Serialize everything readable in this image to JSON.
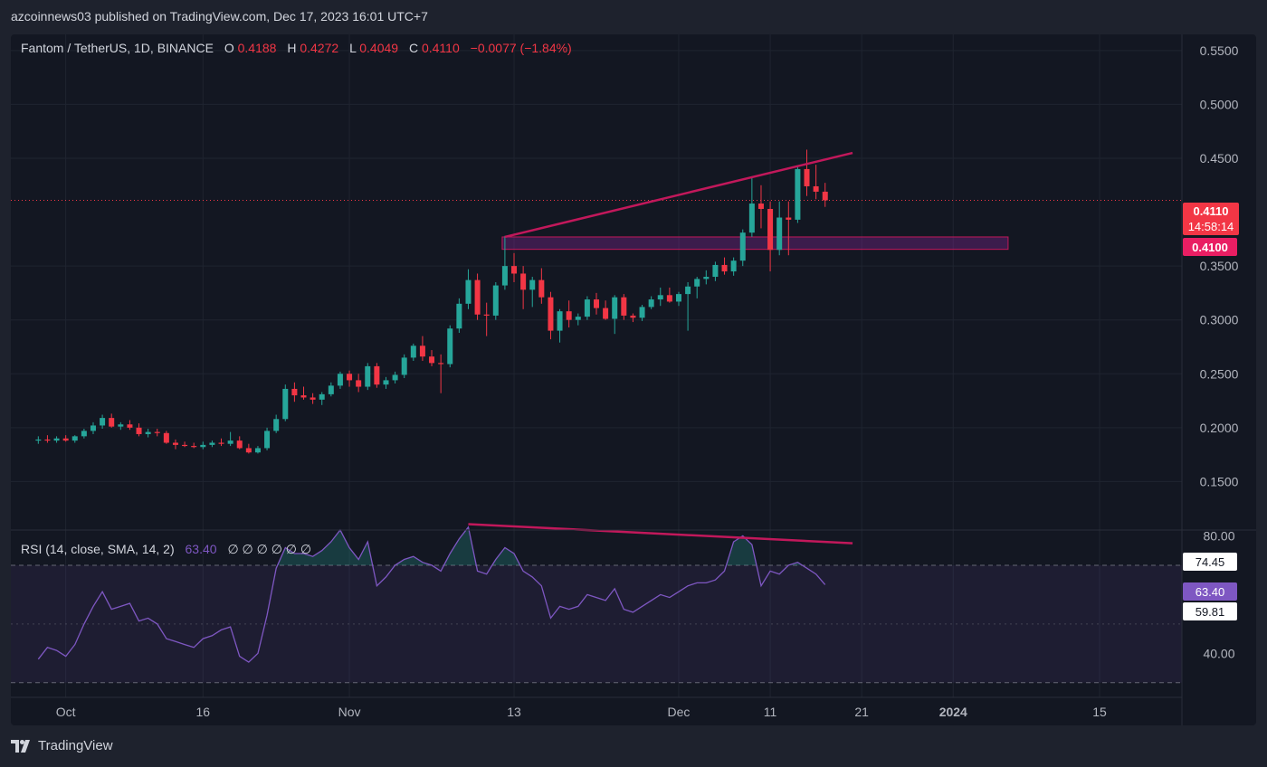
{
  "header": {
    "publisher_line": "azcoinnews03 published on TradingView.com, Dec 17, 2023 16:01 UTC+7"
  },
  "footer": {
    "brand": "TradingView"
  },
  "colors": {
    "background": "#131722",
    "up": "#26a69a",
    "down": "#f23645",
    "trendline": "#c2185b",
    "zone_fill": "rgba(156,39,176,0.30)",
    "zone_border": "#c2185b",
    "rsi_line": "#7e57c2",
    "rsi_band": "rgba(126,87,194,0.10)"
  },
  "legend": {
    "symbol": "Fantom / TetherUS, 1D, BINANCE",
    "o_label": "O",
    "o_value": "0.4188",
    "h_label": "H",
    "h_value": "0.4272",
    "l_label": "L",
    "l_value": "0.4049",
    "c_label": "C",
    "c_value": "0.4110",
    "change": "−0.0077 (−1.84%)"
  },
  "rsi_legend": {
    "label": "RSI (14, close, SMA, 14, 2)",
    "value": "63.40",
    "extras": "∅ ∅ ∅ ∅ ∅ ∅"
  },
  "price_badges": {
    "last_price": "0.4110",
    "countdown": "14:58:14",
    "line_price": "0.4100",
    "rsi_upper": "74.45",
    "rsi_value": "63.40",
    "rsi_lower": "59.81"
  },
  "chart_data": {
    "type": "candlestick",
    "title": "Fantom / TetherUS, 1D, BINANCE",
    "price_axis": {
      "ticks": [
        "0.5500",
        "0.5000",
        "0.4500",
        "0.3500",
        "0.3000",
        "0.2500",
        "0.2000",
        "0.1500"
      ],
      "range": [
        0.105,
        0.565
      ]
    },
    "x_axis": {
      "ticks": [
        "Oct",
        "16",
        "Nov",
        "13",
        "Dec",
        "11",
        "21",
        "2024",
        "15"
      ],
      "tick_days": [
        4,
        19,
        35,
        53,
        71,
        81,
        91,
        101,
        117
      ],
      "day_range": [
        -2,
        126
      ]
    },
    "candles": [
      [
        1,
        0.188,
        0.192,
        0.185,
        0.189
      ],
      [
        2,
        0.189,
        0.193,
        0.186,
        0.188
      ],
      [
        3,
        0.188,
        0.192,
        0.186,
        0.19
      ],
      [
        4,
        0.19,
        0.193,
        0.187,
        0.188
      ],
      [
        5,
        0.188,
        0.193,
        0.186,
        0.192
      ],
      [
        6,
        0.192,
        0.199,
        0.19,
        0.197
      ],
      [
        7,
        0.197,
        0.205,
        0.194,
        0.202
      ],
      [
        8,
        0.202,
        0.212,
        0.199,
        0.209
      ],
      [
        9,
        0.209,
        0.213,
        0.2,
        0.201
      ],
      [
        10,
        0.201,
        0.205,
        0.198,
        0.203
      ],
      [
        11,
        0.203,
        0.207,
        0.198,
        0.2
      ],
      [
        12,
        0.2,
        0.204,
        0.192,
        0.194
      ],
      [
        13,
        0.194,
        0.199,
        0.191,
        0.196
      ],
      [
        14,
        0.196,
        0.199,
        0.192,
        0.195
      ],
      [
        15,
        0.195,
        0.197,
        0.185,
        0.186
      ],
      [
        16,
        0.186,
        0.189,
        0.18,
        0.184
      ],
      [
        17,
        0.184,
        0.187,
        0.182,
        0.183
      ],
      [
        18,
        0.183,
        0.186,
        0.181,
        0.182
      ],
      [
        19,
        0.182,
        0.187,
        0.18,
        0.184
      ],
      [
        20,
        0.184,
        0.188,
        0.182,
        0.186
      ],
      [
        21,
        0.186,
        0.19,
        0.183,
        0.185
      ],
      [
        22,
        0.185,
        0.196,
        0.183,
        0.188
      ],
      [
        23,
        0.188,
        0.192,
        0.18,
        0.181
      ],
      [
        24,
        0.181,
        0.185,
        0.176,
        0.177
      ],
      [
        25,
        0.177,
        0.183,
        0.176,
        0.181
      ],
      [
        26,
        0.181,
        0.2,
        0.179,
        0.197
      ],
      [
        27,
        0.197,
        0.212,
        0.195,
        0.208
      ],
      [
        28,
        0.208,
        0.24,
        0.206,
        0.236
      ],
      [
        29,
        0.236,
        0.242,
        0.224,
        0.23
      ],
      [
        30,
        0.23,
        0.238,
        0.226,
        0.228
      ],
      [
        31,
        0.228,
        0.232,
        0.222,
        0.226
      ],
      [
        32,
        0.226,
        0.233,
        0.221,
        0.231
      ],
      [
        33,
        0.231,
        0.242,
        0.229,
        0.239
      ],
      [
        34,
        0.239,
        0.252,
        0.236,
        0.25
      ],
      [
        35,
        0.25,
        0.253,
        0.238,
        0.244
      ],
      [
        36,
        0.244,
        0.25,
        0.233,
        0.238
      ],
      [
        37,
        0.238,
        0.26,
        0.235,
        0.257
      ],
      [
        38,
        0.257,
        0.26,
        0.237,
        0.24
      ],
      [
        39,
        0.24,
        0.247,
        0.236,
        0.244
      ],
      [
        40,
        0.244,
        0.252,
        0.241,
        0.249
      ],
      [
        41,
        0.249,
        0.268,
        0.246,
        0.265
      ],
      [
        42,
        0.265,
        0.278,
        0.262,
        0.276
      ],
      [
        43,
        0.276,
        0.285,
        0.262,
        0.266
      ],
      [
        44,
        0.266,
        0.272,
        0.257,
        0.26
      ],
      [
        45,
        0.26,
        0.268,
        0.232,
        0.259
      ],
      [
        46,
        0.259,
        0.295,
        0.256,
        0.292
      ],
      [
        47,
        0.292,
        0.32,
        0.288,
        0.315
      ],
      [
        48,
        0.315,
        0.347,
        0.31,
        0.337
      ],
      [
        49,
        0.337,
        0.343,
        0.3,
        0.305
      ],
      [
        50,
        0.305,
        0.316,
        0.285,
        0.304
      ],
      [
        51,
        0.304,
        0.335,
        0.3,
        0.332
      ],
      [
        52,
        0.332,
        0.378,
        0.328,
        0.35
      ],
      [
        53,
        0.35,
        0.362,
        0.335,
        0.343
      ],
      [
        54,
        0.343,
        0.35,
        0.31,
        0.328
      ],
      [
        55,
        0.328,
        0.34,
        0.312,
        0.337
      ],
      [
        56,
        0.337,
        0.348,
        0.315,
        0.321
      ],
      [
        57,
        0.321,
        0.326,
        0.282,
        0.29
      ],
      [
        58,
        0.29,
        0.31,
        0.279,
        0.308
      ],
      [
        59,
        0.308,
        0.318,
        0.293,
        0.3
      ],
      [
        60,
        0.3,
        0.306,
        0.295,
        0.303
      ],
      [
        61,
        0.303,
        0.322,
        0.3,
        0.319
      ],
      [
        62,
        0.319,
        0.325,
        0.305,
        0.311
      ],
      [
        63,
        0.311,
        0.318,
        0.3,
        0.301
      ],
      [
        64,
        0.301,
        0.323,
        0.287,
        0.321
      ],
      [
        65,
        0.321,
        0.324,
        0.3,
        0.304
      ],
      [
        66,
        0.304,
        0.306,
        0.298,
        0.302
      ],
      [
        67,
        0.302,
        0.314,
        0.299,
        0.312
      ],
      [
        68,
        0.312,
        0.322,
        0.31,
        0.319
      ],
      [
        69,
        0.319,
        0.33,
        0.313,
        0.323
      ],
      [
        70,
        0.323,
        0.33,
        0.316,
        0.317
      ],
      [
        71,
        0.317,
        0.326,
        0.313,
        0.324
      ],
      [
        72,
        0.324,
        0.335,
        0.29,
        0.331
      ],
      [
        73,
        0.331,
        0.34,
        0.32,
        0.338
      ],
      [
        74,
        0.338,
        0.346,
        0.333,
        0.34
      ],
      [
        75,
        0.34,
        0.354,
        0.336,
        0.351
      ],
      [
        76,
        0.351,
        0.358,
        0.342,
        0.345
      ],
      [
        77,
        0.345,
        0.358,
        0.341,
        0.355
      ],
      [
        78,
        0.355,
        0.384,
        0.35,
        0.381
      ],
      [
        79,
        0.381,
        0.432,
        0.377,
        0.408
      ],
      [
        80,
        0.408,
        0.425,
        0.385,
        0.403
      ],
      [
        81,
        0.403,
        0.41,
        0.345,
        0.365
      ],
      [
        82,
        0.365,
        0.41,
        0.36,
        0.395
      ],
      [
        83,
        0.395,
        0.41,
        0.36,
        0.393
      ],
      [
        84,
        0.393,
        0.442,
        0.39,
        0.44
      ],
      [
        85,
        0.44,
        0.458,
        0.415,
        0.424
      ],
      [
        86,
        0.424,
        0.444,
        0.412,
        0.419
      ],
      [
        87,
        0.419,
        0.4272,
        0.4049,
        0.411
      ]
    ],
    "rsi": {
      "label": "RSI (14, close, SMA, 14, 2)",
      "ticks": [
        "80.00",
        "40.00"
      ],
      "levels": [
        70,
        50,
        30
      ],
      "range": [
        25,
        82
      ],
      "values": [
        [
          1,
          38
        ],
        [
          2,
          42
        ],
        [
          3,
          41
        ],
        [
          4,
          39
        ],
        [
          5,
          43
        ],
        [
          6,
          50
        ],
        [
          7,
          56
        ],
        [
          8,
          61
        ],
        [
          9,
          55
        ],
        [
          10,
          56
        ],
        [
          11,
          57
        ],
        [
          12,
          51
        ],
        [
          13,
          52
        ],
        [
          14,
          50
        ],
        [
          15,
          45
        ],
        [
          16,
          44
        ],
        [
          17,
          43
        ],
        [
          18,
          42
        ],
        [
          19,
          45
        ],
        [
          20,
          46
        ],
        [
          21,
          48
        ],
        [
          22,
          49
        ],
        [
          23,
          39
        ],
        [
          24,
          37
        ],
        [
          25,
          40
        ],
        [
          26,
          53
        ],
        [
          27,
          69
        ],
        [
          28,
          76
        ],
        [
          29,
          74
        ],
        [
          30,
          74
        ],
        [
          31,
          73
        ],
        [
          32,
          75
        ],
        [
          33,
          78
        ],
        [
          34,
          82
        ],
        [
          35,
          76
        ],
        [
          36,
          72
        ],
        [
          37,
          78
        ],
        [
          38,
          63
        ],
        [
          39,
          66
        ],
        [
          40,
          70
        ],
        [
          41,
          72
        ],
        [
          42,
          73
        ],
        [
          43,
          71
        ],
        [
          44,
          70
        ],
        [
          45,
          68
        ],
        [
          46,
          74
        ],
        [
          47,
          79
        ],
        [
          48,
          83
        ],
        [
          49,
          68
        ],
        [
          50,
          67
        ],
        [
          51,
          72
        ],
        [
          52,
          76
        ],
        [
          53,
          74
        ],
        [
          54,
          68
        ],
        [
          55,
          66
        ],
        [
          56,
          63
        ],
        [
          57,
          52
        ],
        [
          58,
          56
        ],
        [
          59,
          55
        ],
        [
          60,
          56
        ],
        [
          61,
          60
        ],
        [
          62,
          59
        ],
        [
          63,
          58
        ],
        [
          64,
          62
        ],
        [
          65,
          55
        ],
        [
          66,
          54
        ],
        [
          67,
          56
        ],
        [
          68,
          58
        ],
        [
          69,
          60
        ],
        [
          70,
          59
        ],
        [
          71,
          61
        ],
        [
          72,
          63
        ],
        [
          73,
          64
        ],
        [
          74,
          64
        ],
        [
          75,
          65
        ],
        [
          76,
          68
        ],
        [
          77,
          78
        ],
        [
          78,
          80
        ],
        [
          79,
          77
        ],
        [
          80,
          63
        ],
        [
          81,
          68
        ],
        [
          82,
          67
        ],
        [
          83,
          70
        ],
        [
          84,
          71
        ],
        [
          85,
          69
        ],
        [
          86,
          67
        ],
        [
          87,
          63.4
        ]
      ],
      "smoothing_upper": 74.45,
      "smoothing_lower": 59.81
    },
    "annotations": {
      "price_trendline": {
        "from": [
          52,
          0.377
        ],
        "to": [
          90,
          0.455
        ]
      },
      "rsi_trendline": {
        "from": [
          48,
          84
        ],
        "to": [
          90,
          77.5
        ]
      },
      "zone": {
        "day_from": 52,
        "day_to": 107,
        "price_low": 0.3655,
        "price_high": 0.377
      },
      "last_price_line": 0.411
    }
  }
}
